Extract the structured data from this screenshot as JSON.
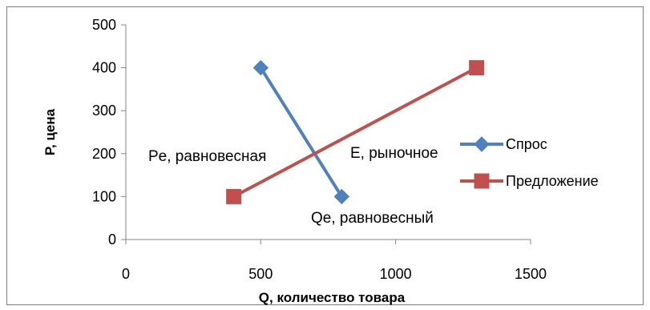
{
  "chart_data": {
    "type": "line",
    "xlabel": "Q, количество товара",
    "ylabel": "P, цена",
    "xlim": [
      0,
      1500
    ],
    "ylim": [
      0,
      500
    ],
    "x_ticks": [
      0,
      500,
      1000,
      1500
    ],
    "y_ticks": [
      0,
      100,
      200,
      300,
      400,
      500
    ],
    "grid": false,
    "legend_position": "right",
    "series": [
      {
        "name": "Спрос",
        "color": "#4F81BD",
        "marker": "diamond",
        "points": [
          {
            "x": 500,
            "y": 400
          },
          {
            "x": 800,
            "y": 100
          }
        ]
      },
      {
        "name": "Предложение",
        "color": "#C0504D",
        "marker": "square",
        "points": [
          {
            "x": 400,
            "y": 100
          },
          {
            "x": 1300,
            "y": 400
          }
        ]
      }
    ],
    "annotations": [
      {
        "text": "Pe, равновесная"
      },
      {
        "text": "E, рыночное"
      },
      {
        "text": "Qe, равновесный"
      }
    ]
  }
}
